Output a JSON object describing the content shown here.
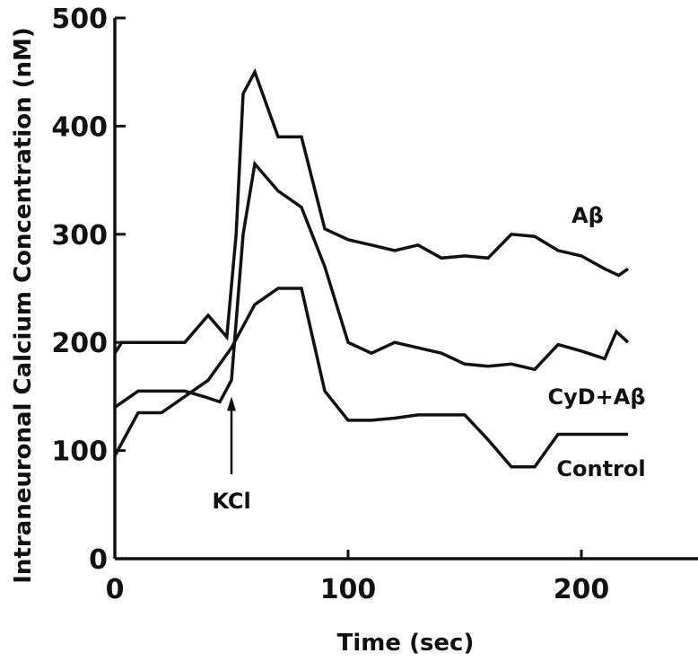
{
  "chart_data": {
    "type": "line",
    "xlabel": "Time (sec)",
    "ylabel": "Intraneuronal Calcium Concentration (nM)",
    "xlim": [
      0,
      250
    ],
    "ylim": [
      0,
      500
    ],
    "x_ticks": [
      "0",
      "100",
      "200"
    ],
    "y_ticks": [
      "0",
      "100",
      "200",
      "300",
      "400",
      "500"
    ],
    "grid": false,
    "series": [
      {
        "name": "Aβ",
        "x": [
          0,
          3,
          10,
          20,
          30,
          40,
          48,
          52,
          55,
          60,
          70,
          80,
          90,
          100,
          110,
          120,
          130,
          140,
          150,
          160,
          170,
          180,
          190,
          200,
          210,
          216,
          220
        ],
        "y": [
          190,
          200,
          200,
          200,
          200,
          225,
          205,
          300,
          430,
          450,
          390,
          390,
          305,
          295,
          290,
          285,
          290,
          278,
          280,
          278,
          300,
          298,
          285,
          280,
          268,
          262,
          268
        ]
      },
      {
        "name": "CyD+Aβ",
        "x": [
          0,
          10,
          20,
          30,
          38,
          45,
          50,
          55,
          60,
          70,
          80,
          90,
          100,
          110,
          120,
          130,
          140,
          150,
          160,
          170,
          180,
          190,
          200,
          210,
          215,
          220
        ],
        "y": [
          140,
          155,
          155,
          155,
          150,
          145,
          165,
          300,
          365,
          340,
          325,
          270,
          200,
          190,
          200,
          195,
          190,
          180,
          178,
          180,
          175,
          198,
          192,
          185,
          210,
          200
        ]
      },
      {
        "name": "Control",
        "x": [
          0,
          5,
          10,
          20,
          30,
          40,
          50,
          60,
          70,
          80,
          90,
          100,
          110,
          120,
          130,
          140,
          150,
          160,
          170,
          180,
          190,
          200,
          220
        ],
        "y": [
          95,
          115,
          135,
          135,
          150,
          165,
          195,
          235,
          250,
          250,
          155,
          128,
          128,
          130,
          133,
          133,
          133,
          110,
          85,
          85,
          115,
          115,
          115
        ]
      }
    ],
    "annotations": [
      {
        "text": "KCl",
        "x": 50,
        "arrow_tip_y": 150,
        "arrow_tail_y": 78
      }
    ]
  }
}
